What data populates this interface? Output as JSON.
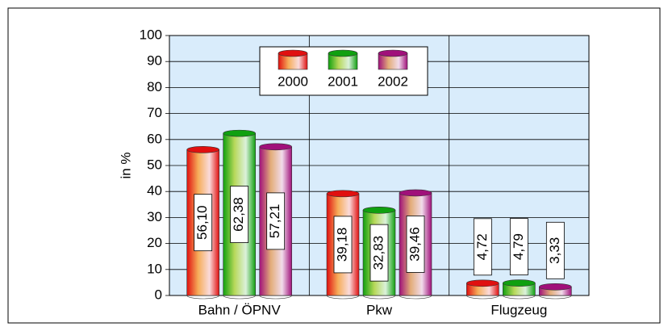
{
  "chart_data": {
    "type": "bar",
    "y_label": "in %",
    "categories": [
      "Bahn / ÖPNV",
      "Pkw",
      "Flugzeug"
    ],
    "series": [
      {
        "name": "2000",
        "color": "#e01010",
        "values": [
          56.1,
          39.18,
          4.72
        ],
        "value_labels": [
          "56,10",
          "39,18",
          "4,72"
        ]
      },
      {
        "name": "2001",
        "color": "#10a010",
        "values": [
          62.38,
          32.83,
          4.79
        ],
        "value_labels": [
          "62,38",
          "32,83",
          "4,79"
        ]
      },
      {
        "name": "2002",
        "color": "#a0107a",
        "values": [
          57.21,
          39.46,
          3.33
        ],
        "value_labels": [
          "57,21",
          "39,46",
          "3,33"
        ]
      }
    ],
    "ylim": [
      0,
      100
    ],
    "yticks": [
      0,
      10,
      20,
      30,
      40,
      50,
      60,
      70,
      80,
      90,
      100
    ],
    "grid": true,
    "legend": "top"
  }
}
